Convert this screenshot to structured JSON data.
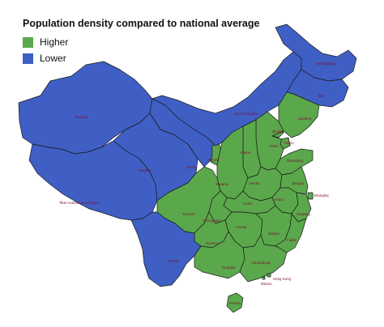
{
  "title": "Population density compared to national average",
  "legend": [
    {
      "label": "Higher",
      "color": "#5aa84b"
    },
    {
      "label": "Lower",
      "color": "#3f5fc4"
    }
  ],
  "colors": {
    "higher": "#5aa84b",
    "lower": "#3f5fc4",
    "border": "#1a1a1a",
    "label": "#7a1030"
  },
  "regions": [
    {
      "name": "Xinjiang",
      "category": "lower"
    },
    {
      "name": "Tibet Autonomous Region",
      "category": "lower"
    },
    {
      "name": "Qinghai",
      "category": "lower"
    },
    {
      "name": "Gansu",
      "category": "lower"
    },
    {
      "name": "Ningxia",
      "category": "higher"
    },
    {
      "name": "Inner Mongolia",
      "category": "lower"
    },
    {
      "name": "Heilongjiang",
      "category": "lower"
    },
    {
      "name": "Jilin",
      "category": "lower"
    },
    {
      "name": "Liaoning",
      "category": "higher"
    },
    {
      "name": "Beijing",
      "category": "higher"
    },
    {
      "name": "Tianjin",
      "category": "higher"
    },
    {
      "name": "Hebei",
      "category": "higher"
    },
    {
      "name": "Shanxi",
      "category": "higher"
    },
    {
      "name": "Shandong",
      "category": "higher"
    },
    {
      "name": "Shaanxi",
      "category": "higher"
    },
    {
      "name": "Henan",
      "category": "higher"
    },
    {
      "name": "Jiangsu",
      "category": "higher"
    },
    {
      "name": "Anhui",
      "category": "higher"
    },
    {
      "name": "Shanghai",
      "category": "higher"
    },
    {
      "name": "Hubei",
      "category": "higher"
    },
    {
      "name": "Zhejiang",
      "category": "higher"
    },
    {
      "name": "Sichuan",
      "category": "higher"
    },
    {
      "name": "Chongqing",
      "category": "higher"
    },
    {
      "name": "Hunan",
      "category": "higher"
    },
    {
      "name": "Jiangxi",
      "category": "higher"
    },
    {
      "name": "Guizhou",
      "category": "higher"
    },
    {
      "name": "Fujian",
      "category": "higher"
    },
    {
      "name": "Yunnan",
      "category": "lower"
    },
    {
      "name": "Guangxi",
      "category": "higher"
    },
    {
      "name": "Guangdong",
      "category": "higher"
    },
    {
      "name": "Hong Kong",
      "category": "higher"
    },
    {
      "name": "Macau",
      "category": "higher"
    },
    {
      "name": "Hainan",
      "category": "higher"
    }
  ]
}
